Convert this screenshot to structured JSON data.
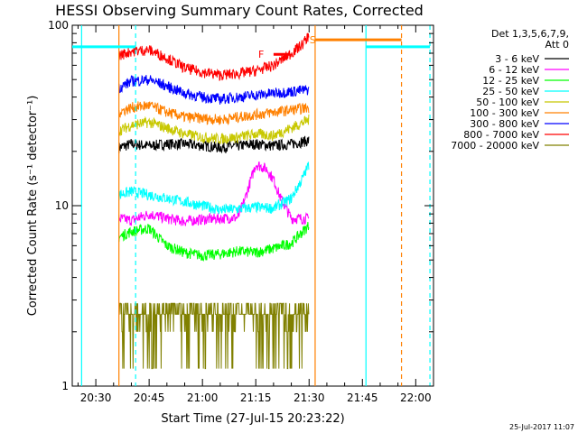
{
  "chart_data": {
    "type": "line",
    "title": "HESSI Observing Summary Count Rates, Corrected",
    "xlabel": "Start Time (27-Jul-15 20:23:22)",
    "ylabel": "Corrected Count Rate (s⁻¹ detector⁻¹)",
    "yscale": "log",
    "xlim_minutes": [
      23.37,
      125.0
    ],
    "ylim": [
      1,
      100
    ],
    "x_ticks": [
      "20:30",
      "20:45",
      "21:00",
      "21:15",
      "21:30",
      "21:45",
      "22:00"
    ],
    "y_ticks": [
      "1",
      "10",
      "100"
    ],
    "legend_header": [
      "Det 1,3,5,6,7,9,",
      "Att 0"
    ],
    "flags": [
      {
        "label": "F",
        "color": "#ff0000"
      },
      {
        "label": "S",
        "color": "#ff8000"
      }
    ],
    "series": [
      {
        "name": "3 - 6 keV",
        "color": "#000000",
        "x": [
          36.5,
          40,
          45,
          50,
          55,
          60,
          65,
          70,
          75,
          80,
          85,
          90
        ],
        "y": [
          21,
          22,
          21.5,
          22,
          22,
          21.5,
          21,
          21.5,
          22,
          21.5,
          22,
          23
        ]
      },
      {
        "name": "6 - 12 keV",
        "color": "#ff00ff",
        "x": [
          36.5,
          40,
          45,
          50,
          55,
          60,
          65,
          70,
          72,
          75,
          78,
          80,
          82,
          85,
          90
        ],
        "y": [
          8.5,
          8.3,
          9,
          8.5,
          8.2,
          8.4,
          8.5,
          8.6,
          11,
          17,
          16,
          14,
          11,
          8.5,
          8.5
        ]
      },
      {
        "name": "12 - 25 keV",
        "color": "#00ff00",
        "x": [
          36.5,
          40,
          45,
          50,
          55,
          60,
          65,
          70,
          75,
          80,
          85,
          90
        ],
        "y": [
          6.7,
          7.2,
          7.5,
          6,
          5.5,
          5.3,
          5.4,
          5.6,
          5.5,
          5.8,
          6.2,
          7.8
        ]
      },
      {
        "name": "25 - 50 keV",
        "color": "#00ffff",
        "x": [
          36.5,
          40,
          45,
          50,
          55,
          60,
          65,
          70,
          75,
          80,
          85,
          88,
          90
        ],
        "y": [
          11.5,
          12,
          11.5,
          11,
          10.5,
          10,
          9.5,
          9.6,
          9.8,
          9.7,
          11,
          14,
          17
        ]
      },
      {
        "name": "50 - 100 keV",
        "color": "#c8c800",
        "x": [
          36.5,
          40,
          45,
          50,
          55,
          60,
          65,
          70,
          75,
          80,
          85,
          90
        ],
        "y": [
          26,
          28,
          29,
          27,
          25,
          24,
          23.5,
          24,
          25,
          24.5,
          27,
          30
        ]
      },
      {
        "name": "100 - 300 keV",
        "color": "#ff8000",
        "x": [
          36.5,
          40,
          45,
          50,
          55,
          60,
          65,
          70,
          75,
          80,
          85,
          90
        ],
        "y": [
          33,
          35,
          36,
          33,
          31,
          30.5,
          30,
          31,
          32,
          33,
          34,
          35
        ]
      },
      {
        "name": "300 - 800 keV",
        "color": "#0000ff",
        "x": [
          36.5,
          40,
          45,
          50,
          55,
          60,
          65,
          70,
          75,
          80,
          85,
          90
        ],
        "y": [
          45,
          49,
          50,
          46,
          42,
          40,
          39,
          40,
          41,
          42,
          43,
          44
        ]
      },
      {
        "name": "800 - 7000 keV",
        "color": "#ff0000",
        "x": [
          36.5,
          40,
          45,
          50,
          55,
          60,
          65,
          70,
          75,
          80,
          85,
          88,
          90
        ],
        "y": [
          68,
          72,
          73,
          66,
          58,
          55,
          53,
          54,
          56,
          60,
          70,
          78,
          88
        ]
      },
      {
        "name": "7000 - 20000 keV",
        "color": "#808000",
        "x": [
          36.5,
          40,
          45,
          50,
          55,
          60,
          65,
          70,
          75,
          80,
          85,
          90
        ],
        "y": [
          2.5,
          2.6,
          2.5,
          2.4,
          2.3,
          2.3,
          2.4,
          2.5,
          2.4,
          2.5,
          2.5,
          2.6
        ]
      }
    ],
    "vertical_lines": [
      {
        "x": 26.0,
        "color": "#00ffff",
        "style": "solid"
      },
      {
        "x": 36.5,
        "color": "#ff8000",
        "style": "solid"
      },
      {
        "x": 41.2,
        "color": "#00ffff",
        "style": "dashed"
      },
      {
        "x": 91.7,
        "color": "#ff8000",
        "style": "solid"
      },
      {
        "x": 106.0,
        "color": "#00ffff",
        "style": "solid"
      },
      {
        "x": 116.0,
        "color": "#ff8000",
        "style": "dashed"
      },
      {
        "x": 124.0,
        "color": "#00ffff",
        "style": "dashed"
      }
    ],
    "horizontal_segments": [
      {
        "x": [
          23.37,
          41.2
        ],
        "y": 76,
        "color": "#00ffff"
      },
      {
        "x": [
          106.0,
          124.0
        ],
        "y": 76,
        "color": "#00ffff"
      },
      {
        "x": [
          91.7,
          116.0
        ],
        "y": 83,
        "color": "#ff8000"
      },
      {
        "x": [
          80.0,
          84.5
        ],
        "y": 69,
        "color": "#ff0000"
      }
    ]
  },
  "footer": {
    "timestamp": "25-Jul-2017 11:07"
  }
}
